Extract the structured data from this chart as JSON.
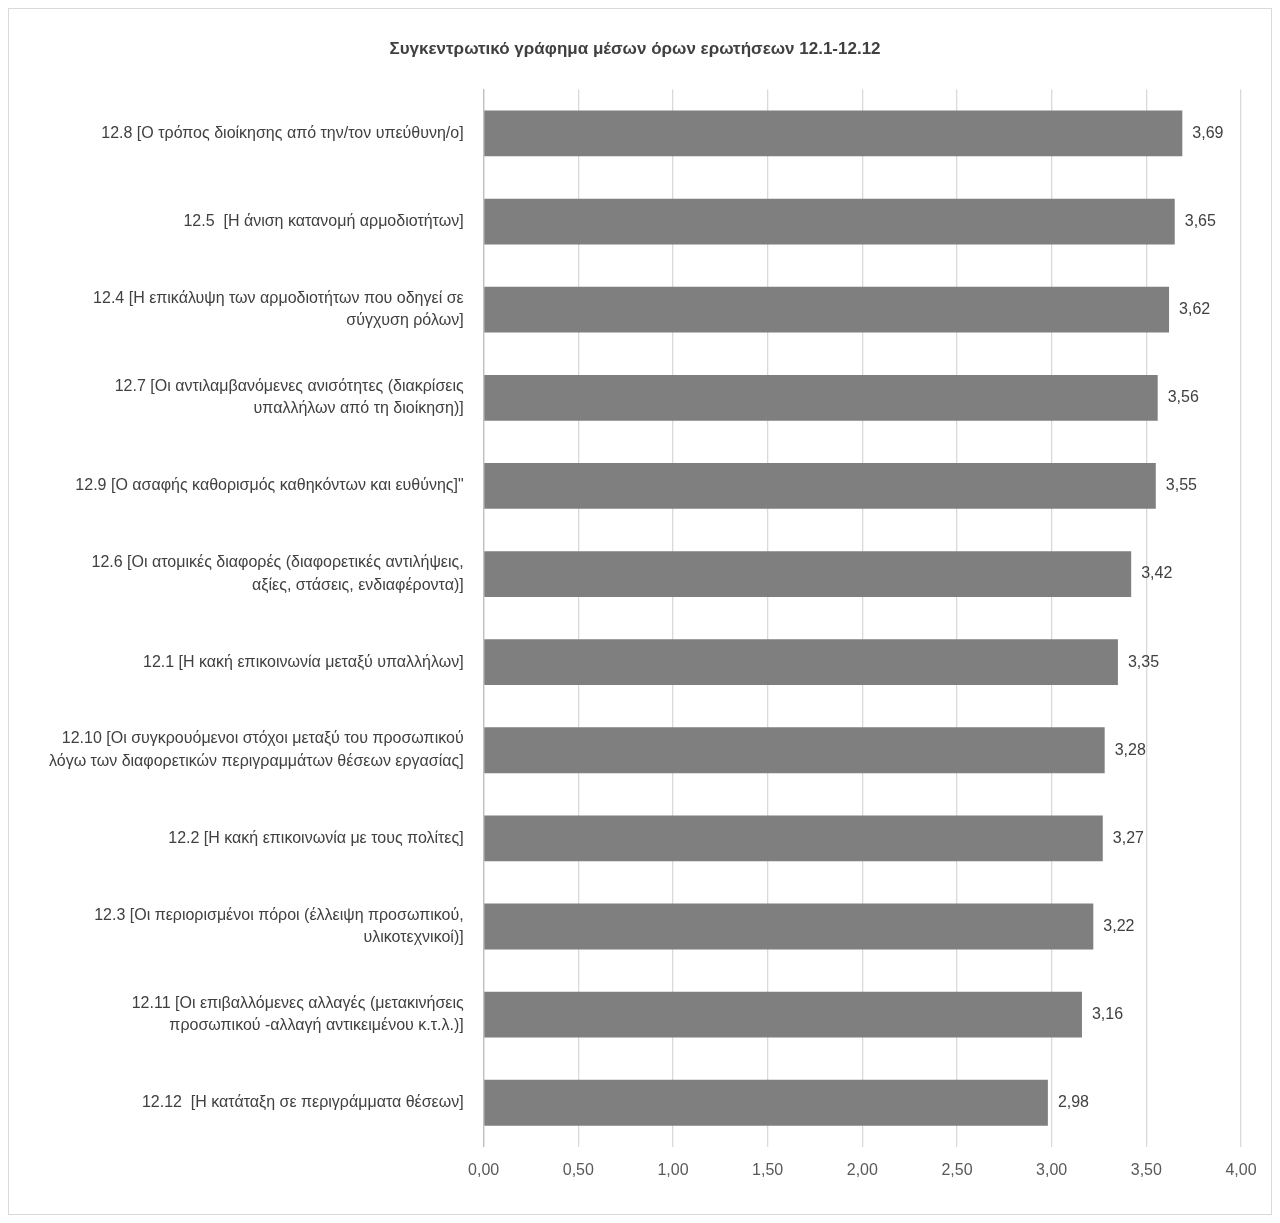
{
  "chart_data": {
    "type": "bar",
    "orientation": "horizontal",
    "title": "Συγκεντρωτικό γράφημα μέσων όρων ερωτήσεων 12.1-12.12",
    "categories": [
      "12.8 [Ο τρόπος διοίκησης από την/τον υπεύθυνη/ο]",
      "12.5  [Η άνιση κατανομή αρμοδιοτήτων]",
      "12.4 [Η επικάλυψη των αρμοδιοτήτων που οδηγεί σε\nσύγχυση ρόλων]",
      "12.7 [Οι αντιλαμβανόμενες ανισότητες (διακρίσεις\nυπαλλήλων από τη διοίκηση)]",
      "12.9 [Ο ασαφής καθορισμός καθηκόντων και ευθύνης]\"",
      "12.6 [Οι ατομικές διαφορές (διαφορετικές αντιλήψεις,\nαξίες, στάσεις, ενδιαφέροντα)]",
      "12.1 [Η κακή επικοινωνία μεταξύ υπαλλήλων]",
      "12.10 [Οι συγκρουόμενοι στόχοι μεταξύ του προσωπικού\nλόγω των διαφορετικών περιγραμμάτων θέσεων εργασίας]",
      "12.2 [Η κακή επικοινωνία με τους πολίτες]",
      "12.3 [Οι περιορισμένοι πόροι (έλλειψη προσωπικού,\nυλικοτεχνικοί)]",
      "12.11 [Οι επιβαλλόμενες αλλαγές (μετακινήσεις\nπροσωπικού -αλλαγή αντικειμένου κ.τ.λ.)]",
      "12.12  [Η κατάταξη σε περιγράμματα θέσεων]"
    ],
    "values": [
      3.69,
      3.65,
      3.62,
      3.56,
      3.55,
      3.42,
      3.35,
      3.28,
      3.27,
      3.22,
      3.16,
      2.98
    ],
    "value_labels": [
      "3,69",
      "3,65",
      "3,62",
      "3,56",
      "3,55",
      "3,42",
      "3,35",
      "3,28",
      "3,27",
      "3,22",
      "3,16",
      "2,98"
    ],
    "color": "#7f7f7f",
    "xlim": [
      0,
      4
    ],
    "xticks": [
      {
        "value": 0,
        "label": "0,00"
      },
      {
        "value": 0.5,
        "label": "0,50"
      },
      {
        "value": 1,
        "label": "1,00"
      },
      {
        "value": 1.5,
        "label": "1,50"
      },
      {
        "value": 2,
        "label": "2,00"
      },
      {
        "value": 2.5,
        "label": "2,50"
      },
      {
        "value": 3,
        "label": "3,00"
      },
      {
        "value": 3.5,
        "label": "3,50"
      },
      {
        "value": 4,
        "label": "4,00"
      }
    ],
    "grid": "x",
    "legend": false
  }
}
